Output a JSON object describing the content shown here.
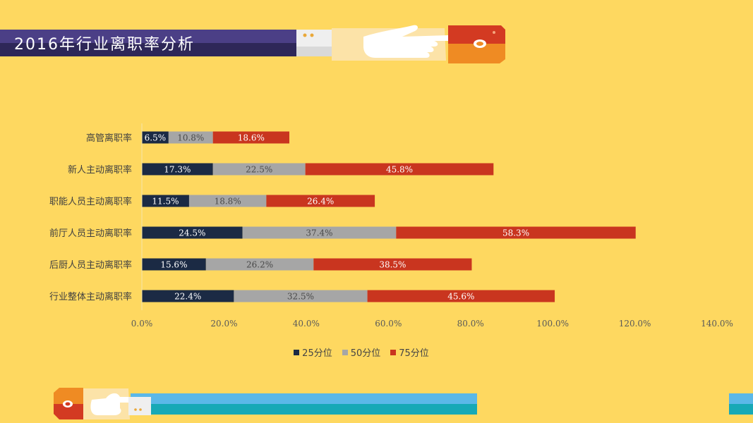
{
  "title": "2016年行业离职率分析",
  "colors": {
    "background": "#FED860",
    "title_bar": "#4B3F86",
    "title_bar_dark": "#2E2758",
    "series_25": "#1B2A44",
    "series_50": "#A6A6A6",
    "series_75": "#C9351F",
    "accent_blue": "#5BB8E8",
    "accent_teal": "#17A9B6",
    "accent_orange": "#EF8B23",
    "accent_red": "#D33A22"
  },
  "chart_data": {
    "type": "bar",
    "orientation": "horizontal",
    "stacked": true,
    "categories": [
      "高管离职率",
      "新人主动离职率",
      "职能人员主动离职率",
      "前厅人员主动离职率",
      "后厨人员主动离职率",
      "行业整体主动离职率"
    ],
    "series": [
      {
        "name": "25分位",
        "values": [
          6.5,
          17.3,
          11.5,
          24.5,
          15.6,
          22.4
        ],
        "labels": [
          "6.5%",
          "17.3%",
          "11.5%",
          "24.5%",
          "15.6%",
          "22.4%"
        ],
        "color": "#1B2A44",
        "label_color": "#FFFFFF"
      },
      {
        "name": "50分位",
        "values": [
          10.8,
          22.5,
          18.8,
          37.4,
          26.2,
          32.5
        ],
        "labels": [
          "10.8%",
          "22.5%",
          "18.8%",
          "37.4%",
          "26.2%",
          "32.5%"
        ],
        "color": "#A6A6A6",
        "label_color": "#4A4A4A"
      },
      {
        "name": "75分位",
        "values": [
          18.6,
          45.8,
          26.4,
          58.3,
          38.5,
          45.6
        ],
        "labels": [
          "18.6%",
          "45.8%",
          "26.4%",
          "58.3%",
          "38.5%",
          "45.6%"
        ],
        "color": "#C9351F",
        "label_color": "#FFFFFF"
      }
    ],
    "xlim": [
      0,
      140
    ],
    "xticks": [
      0,
      20,
      40,
      60,
      80,
      100,
      120,
      140
    ],
    "xtick_labels": [
      "0.0%",
      "20.0%",
      "40.0%",
      "60.0%",
      "80.0%",
      "100.0%",
      "120.0%",
      "140.0%"
    ],
    "grid": false,
    "legend_position": "bottom"
  },
  "legend": {
    "items": [
      {
        "label": "25分位",
        "color": "#1B2A44"
      },
      {
        "label": "50分位",
        "color": "#A6A6A6"
      },
      {
        "label": "75分位",
        "color": "#C9351F"
      }
    ]
  }
}
